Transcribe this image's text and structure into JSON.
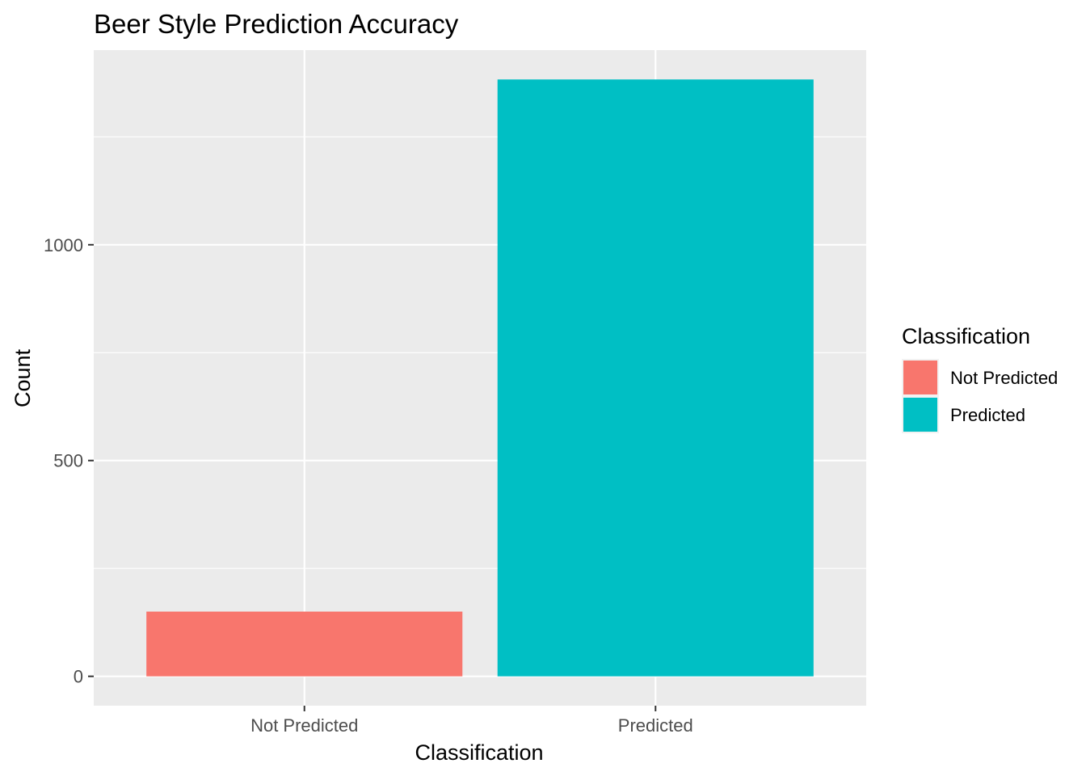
{
  "chart_data": {
    "type": "bar",
    "title": "Beer Style Prediction Accuracy",
    "xlabel": "Classification",
    "ylabel": "Count",
    "categories": [
      "Not Predicted",
      "Predicted"
    ],
    "values": [
      150,
      1383
    ],
    "colors": [
      "#F8766D",
      "#00BFC4"
    ],
    "ylim": [
      -68,
      1451
    ],
    "y_ticks": [
      0,
      500,
      1000
    ],
    "y_minor_ticks": [
      250,
      750,
      1250
    ],
    "grid": true,
    "legend": {
      "title": "Classification",
      "position": "right",
      "entries": [
        "Not Predicted",
        "Predicted"
      ]
    }
  }
}
